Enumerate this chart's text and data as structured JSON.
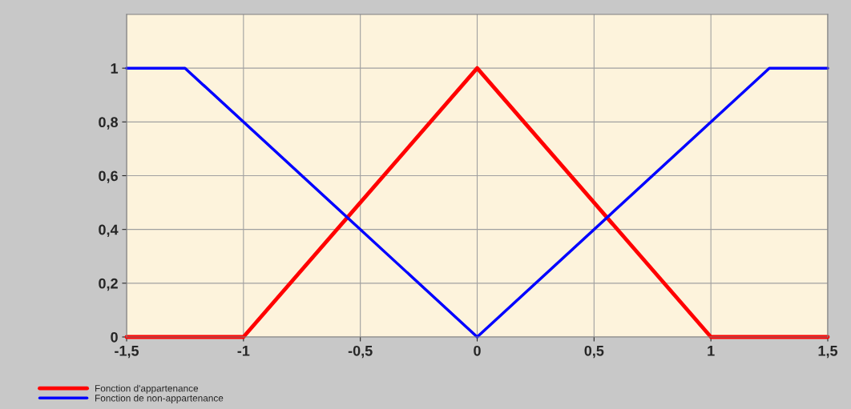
{
  "chart_data": {
    "type": "line",
    "series": [
      {
        "name": "Fonction d'appartenance",
        "color": "#ff0000",
        "x": [
          -1.5,
          -1,
          0,
          1,
          1.5
        ],
        "values": [
          0,
          0,
          1,
          0,
          0
        ]
      },
      {
        "name": "Fonction de non-appartenance",
        "color": "#0000ff",
        "x": [
          -1.5,
          -1.25,
          0,
          1.25,
          1.5
        ],
        "values": [
          1,
          1,
          0,
          1,
          1
        ]
      }
    ],
    "xlim": [
      -1.5,
      1.5
    ],
    "xticks": [
      {
        "value": -1.5,
        "label": "-1,5"
      },
      {
        "value": -1,
        "label": "-1"
      },
      {
        "value": -0.5,
        "label": "-0,5"
      },
      {
        "value": 0,
        "label": "0"
      },
      {
        "value": 0.5,
        "label": "0,5"
      },
      {
        "value": 1,
        "label": "1"
      },
      {
        "value": 1.5,
        "label": "1,5"
      }
    ],
    "ylim": [
      0,
      1.2
    ],
    "yticks": [
      0,
      {
        "value": 0.2,
        "label": "0,2"
      },
      {
        "value": 0.4,
        "label": "0,4"
      },
      {
        "value": 0.6,
        "label": "0,6"
      },
      {
        "value": 0.8,
        "label": "0,8"
      },
      1
    ],
    "grid": true,
    "legend": "bottom left",
    "marker": "none",
    "line_style": "solid"
  }
}
